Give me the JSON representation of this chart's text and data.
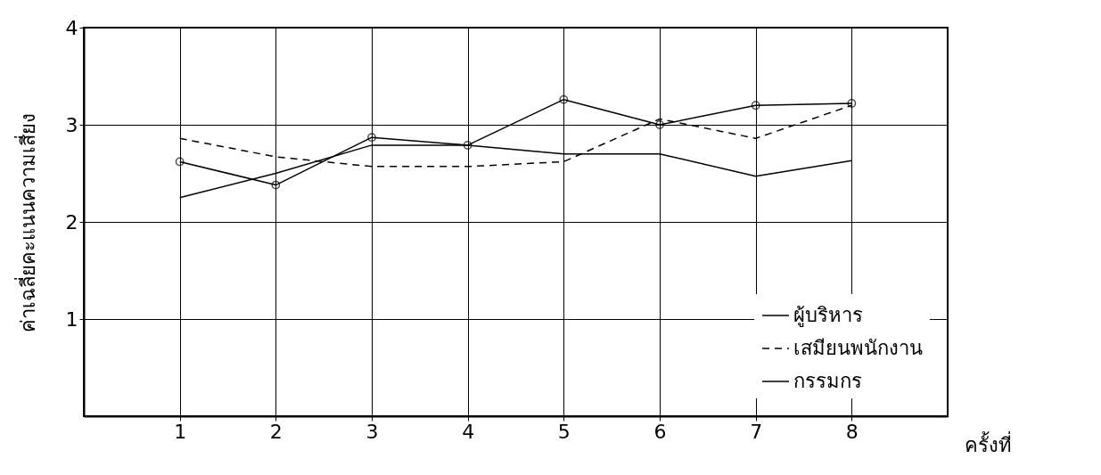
{
  "chart_data": {
    "type": "line",
    "xlabel": "ครั้งที่",
    "ylabel": "ค่าเฉลี่ยคะแนนความเสี่ยง",
    "x": [
      1,
      2,
      3,
      4,
      5,
      6,
      7,
      8
    ],
    "xlim": [
      0,
      9
    ],
    "xticks": [
      1,
      2,
      3,
      4,
      5,
      6,
      7,
      8
    ],
    "ylim": [
      0,
      4
    ],
    "yticks": [
      1,
      2,
      3,
      4
    ],
    "grid": true,
    "legend": "bottom right",
    "series": [
      {
        "name": "ผู้บริหาร",
        "color": "#000000",
        "line_style": "solid",
        "values": [
          2.25,
          2.5,
          2.79,
          2.79,
          2.7,
          2.7,
          2.47,
          2.63
        ]
      },
      {
        "name": "เสมียนพนักงาน",
        "color": "#000000",
        "line_style": "dashed",
        "values": [
          2.86,
          2.67,
          2.57,
          2.57,
          2.62,
          3.06,
          2.86,
          3.2
        ]
      },
      {
        "name": "กรรมกร",
        "color": "#000000",
        "line_style": "solid",
        "marker": "circle",
        "values": [
          2.62,
          2.38,
          2.87,
          2.79,
          3.26,
          3.0,
          3.2,
          3.22
        ]
      }
    ]
  }
}
